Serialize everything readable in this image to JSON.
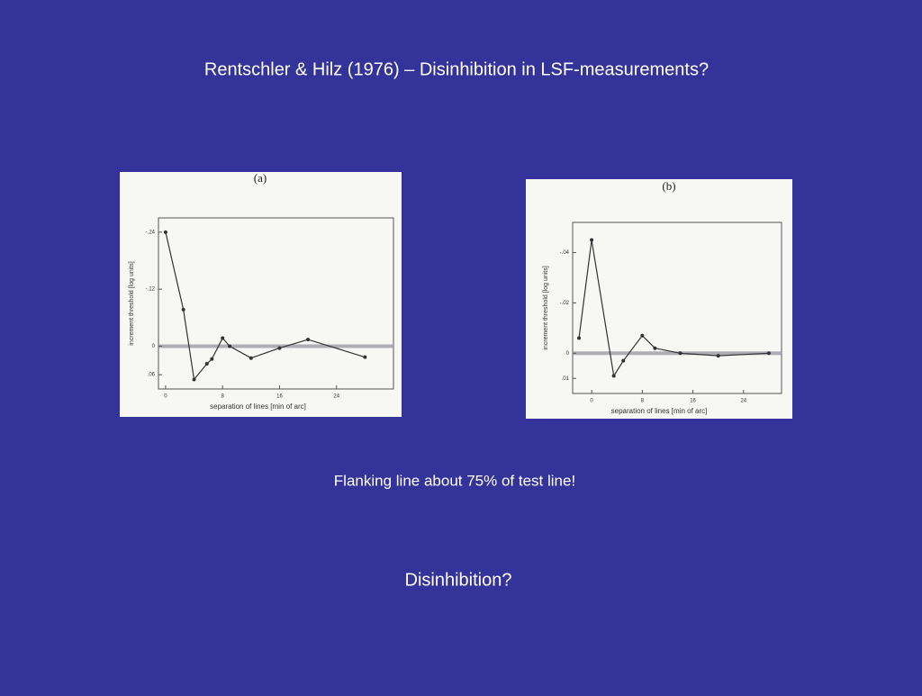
{
  "slide": {
    "title": "Rentschler & Hilz (1976) – Disinhibition in LSF-measurements?",
    "caption": "Flanking line about 75% of test line!",
    "question": "Disinhibition?"
  },
  "chart_data": [
    {
      "type": "line",
      "title": "(a)",
      "x_label": "separation of lines [min of arc]",
      "y_label": "increment threshold [log units]",
      "x": [
        0,
        2.5,
        4,
        5.8,
        6.5,
        8,
        9,
        12,
        16,
        20,
        28
      ],
      "values": [
        -0.24,
        -0.077,
        0.07,
        0.037,
        0.027,
        -0.017,
        0,
        0.025,
        0.004,
        -0.014,
        0.023
      ],
      "color": "#333333",
      "xlim": [
        -1,
        32
      ],
      "xticks": [
        0,
        8,
        16,
        24
      ],
      "ylim": [
        0.09,
        -0.27
      ],
      "yticks": [
        {
          "value": -0.24,
          "label": "-.24"
        },
        {
          "value": -0.12,
          "label": "-.12"
        },
        0,
        {
          "value": 0.06,
          "label": ".06"
        }
      ]
    },
    {
      "type": "line",
      "title": "(b)",
      "x_label": "separation of lines [min of arc]",
      "y_label": "increment threshold [log units]",
      "x": [
        -2,
        0,
        3.5,
        5,
        8,
        10,
        14,
        20,
        28
      ],
      "values": [
        -0.006,
        -0.045,
        0.009,
        0.003,
        -0.007,
        -0.002,
        0,
        0.001,
        0
      ],
      "color": "#333333",
      "xlim": [
        -3,
        30
      ],
      "xticks": [
        0,
        8,
        16,
        24
      ],
      "ylim": [
        0.016,
        -0.052
      ],
      "yticks": [
        {
          "value": -0.04,
          "label": "-.04"
        },
        {
          "value": -0.02,
          "label": "-.02"
        },
        0,
        {
          "value": 0.01,
          "label": ".01"
        }
      ]
    }
  ]
}
